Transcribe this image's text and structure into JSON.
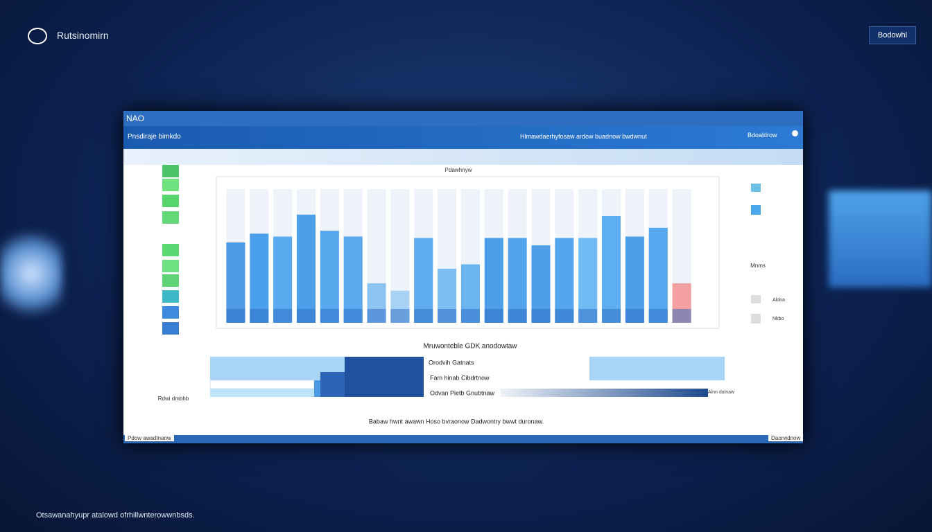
{
  "app": {
    "brand": "Rutsinomirn",
    "top_button": "Bodowhl",
    "footnote": "Otsawanahyupr atalowd ofrhillwnterowwnbsds."
  },
  "window": {
    "title": "NAO",
    "subtitle": "Pnsdiraje bimkdo",
    "center_text": "Hlmawdaerhyfosaw ardow buadnow bwdwnut",
    "right_button": "Bdoaldrow",
    "status_left": "Pdow awadtnanw",
    "status_right": "Daorwdnow"
  },
  "chart_data": {
    "type": "bar",
    "title": "Pdawhnyw",
    "footer_label": "Rdwi dmbhb",
    "corner_label": "Alnn dalnaw",
    "values": [
      55,
      61,
      59,
      74,
      63,
      59,
      27,
      22,
      58,
      37,
      40,
      58,
      58,
      53,
      58,
      58,
      73,
      59,
      65,
      27
    ],
    "colors": [
      "#4f9be6",
      "#4aa0ea",
      "#5aaaf0",
      "#4c9fe8",
      "#58a8ee",
      "#5aa9ef",
      "#8cc4f2",
      "#a8d2f4",
      "#5fadf0",
      "#7dbdf2",
      "#6ab4f0",
      "#4e9fe8",
      "#52a3ea",
      "#4f9fe8",
      "#55a6ec",
      "#70bbf4",
      "#5eaef2",
      "#4e9fe8",
      "#56a8ee",
      "#f2a0a0"
    ],
    "ylim": [
      0,
      100
    ],
    "side_legend": [
      "Mnms",
      "Aldna",
      "Nkbo"
    ],
    "lower_title": "Mruwonteble GDK anodowtaw",
    "lower_labels": [
      "Orodvih Gatnats",
      "Fam hinab Cibdrtnow",
      "Odvan Pietb Gnubtnaw"
    ],
    "bottom_caption": "Babaw hwnt awawn Hoso bvraonow  Dadwontry bwwt duronaw."
  }
}
